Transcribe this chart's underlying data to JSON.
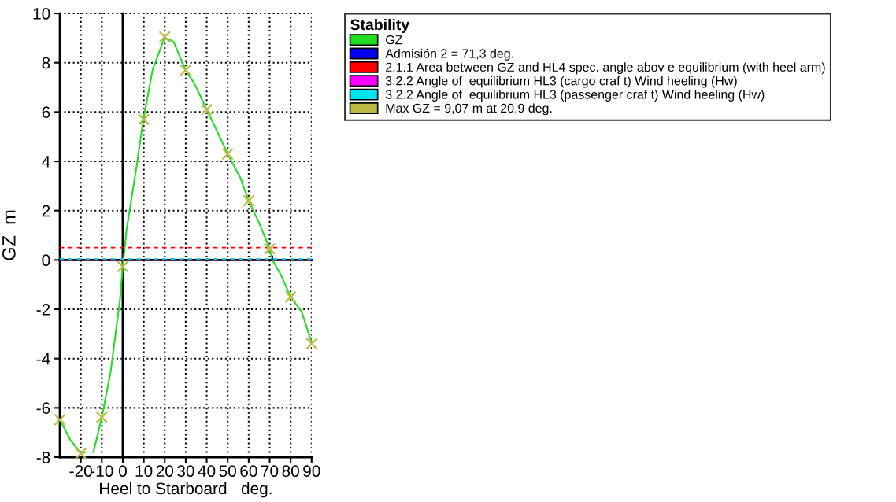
{
  "chart_data": {
    "type": "line",
    "xlabel": "Heel to Starboard   deg.",
    "ylabel": "GZ  m",
    "legend_title": "Stability",
    "xlim": [
      -30,
      90
    ],
    "xticks": [
      -20,
      -10,
      0,
      10,
      20,
      30,
      40,
      50,
      60,
      70,
      80,
      90
    ],
    "ylim": [
      -8,
      10
    ],
    "yticks": [
      -8,
      -6,
      -4,
      -2,
      0,
      2,
      4,
      6,
      8,
      10
    ],
    "grid": true,
    "legend": "right",
    "marker": "none",
    "line_style": "solid",
    "series": [
      {
        "name": "GZ",
        "color": "#22dd22",
        "x": [
          -30,
          -25,
          -20,
          -18,
          -17,
          -14,
          -10,
          -5.8,
          -1.4,
          0,
          1.8,
          6.7,
          9.8,
          14.2,
          19.8,
          22,
          24.2,
          30,
          34.2,
          40,
          45.4,
          50,
          56,
          60,
          65,
          70,
          71.3,
          75.3,
          80,
          85.2,
          90
        ],
        "values": [
          -6.48,
          -7.3,
          -7.85,
          -7.8,
          null,
          -7.8,
          -6.38,
          -4.55,
          -1.66,
          -0.27,
          1.22,
          3.86,
          5.7,
          7.7,
          9.0,
          8.95,
          8.85,
          7.7,
          7.15,
          6.1,
          5.14,
          4.3,
          3.34,
          2.4,
          1.5,
          0.45,
          0,
          -0.59,
          -1.5,
          -2.09,
          -3.35
        ]
      },
      {
        "name": "Admisión 2 = 71,3 deg.",
        "color": "#0000ee",
        "x": [
          71.3,
          71.3
        ],
        "values": [
          0,
          0.15
        ]
      },
      {
        "name": "2.1.1 Area between GZ and HL4 spec. angle abov e equilibrium (with heel arm)",
        "color": "#ff0000",
        "x": [
          -30,
          90
        ],
        "values": [
          0.5,
          0.5
        ],
        "line_style": "dashed"
      },
      {
        "name": "3.2.2 Angle of  equilibrium HL3 (cargo craf t) Wind heeling (Hw)",
        "color": "#ff00ff",
        "x": [
          -30,
          90
        ],
        "values": [
          0,
          0
        ],
        "line_style": "dashed"
      },
      {
        "name": "3.2.2 Angle of  equilibrium HL3 (passenger craf t) Wind heeling (Hw)",
        "color": "#00e5ee",
        "x": [
          -30,
          90
        ],
        "values": [
          0.05,
          0.05
        ],
        "line_style": "dashed"
      },
      {
        "name": "Max GZ = 9,07 m at 20,9 deg.",
        "color": "#bcbc44",
        "type": "scatter",
        "marker": "cross",
        "x": [
          -30,
          -20,
          -10,
          0,
          10,
          20,
          30,
          40,
          50,
          60,
          70,
          80,
          90
        ],
        "values": [
          -6.48,
          -7.85,
          -6.38,
          -0.27,
          5.7,
          9.05,
          7.7,
          6.1,
          4.3,
          2.4,
          0.45,
          -1.5,
          -3.4
        ]
      }
    ]
  }
}
